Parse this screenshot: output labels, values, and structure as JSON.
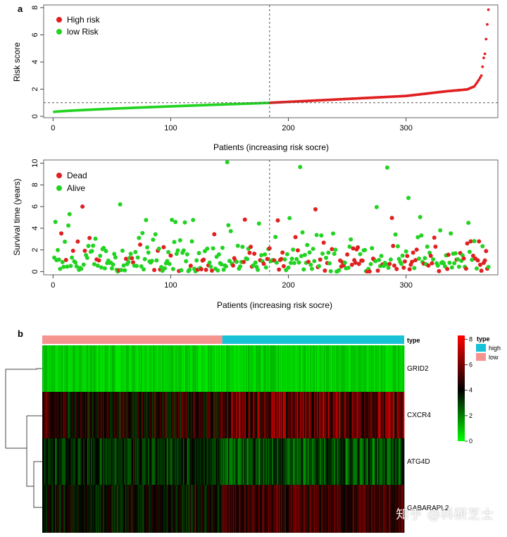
{
  "colors": {
    "high": "#e02020",
    "low": "#22d322",
    "type_high": "#17c2d6",
    "type_low": "#f5938f"
  },
  "chart_data": [
    {
      "panel_label": "a",
      "type": "scatter",
      "ylabel": "Risk score",
      "xlabel": "Patients (increasing risk socre)",
      "xticks": [
        0,
        100,
        200,
        300
      ],
      "yticks": [
        0,
        2,
        4,
        6,
        8
      ],
      "xlim": [
        -8,
        378
      ],
      "ylim": [
        -0.1,
        8.2
      ],
      "cutoff_index": 184,
      "cutoff_score": 1.0,
      "n_patients": 370,
      "legend": [
        "High risk",
        "low Risk"
      ],
      "series": [
        {
          "name": "low Risk",
          "x_range": [
            1,
            184
          ],
          "risk_start": 0.33,
          "risk_end": 0.99
        },
        {
          "name": "High risk",
          "x_range": [
            185,
            370
          ],
          "risk_anchors": [
            [
              185,
              1.0
            ],
            [
              250,
              1.28
            ],
            [
              300,
              1.5
            ],
            [
              335,
              1.85
            ],
            [
              352,
              1.98
            ],
            [
              358,
              2.2
            ],
            [
              362,
              2.7
            ],
            [
              364,
              3.0
            ],
            [
              366,
              4.3
            ],
            [
              367,
              4.6
            ],
            [
              370,
              7.85
            ]
          ]
        }
      ]
    },
    {
      "panel_label": "",
      "type": "scatter",
      "ylabel": "Survival time (years)",
      "xlabel": "Patients (increasing risk socre)",
      "xticks": [
        0,
        100,
        200,
        300
      ],
      "yticks": [
        0,
        2,
        4,
        6,
        8,
        10
      ],
      "xlim": [
        -8,
        378
      ],
      "ylim": [
        -0.3,
        10.3
      ],
      "cutoff_index": 184,
      "legend": [
        "Dead",
        "Alive"
      ],
      "notable_points": [
        {
          "x": 148,
          "y": 10.1,
          "status": "Alive"
        },
        {
          "x": 210,
          "y": 9.65,
          "status": "Alive"
        },
        {
          "x": 284,
          "y": 9.6,
          "status": "Alive"
        },
        {
          "x": 25,
          "y": 6.0,
          "status": "Dead"
        },
        {
          "x": 57,
          "y": 6.2,
          "status": "Alive"
        },
        {
          "x": 223,
          "y": 5.75,
          "status": "Dead"
        },
        {
          "x": 275,
          "y": 5.95,
          "status": "Alive"
        },
        {
          "x": 288,
          "y": 4.95,
          "status": "Dead"
        },
        {
          "x": 302,
          "y": 6.8,
          "status": "Alive"
        },
        {
          "x": 14,
          "y": 5.3,
          "status": "Alive"
        },
        {
          "x": 163,
          "y": 4.8,
          "status": "Dead"
        },
        {
          "x": 353,
          "y": 4.5,
          "status": "Alive"
        }
      ]
    },
    {
      "panel_label": "b",
      "type": "heatmap",
      "genes": [
        "GRID2",
        "CXCR4",
        "ATG4D",
        "GABARAPL2"
      ],
      "annotation_title": "type",
      "annotation_groups": [
        "high",
        "low"
      ],
      "annotation_row_label": "type",
      "colorbar_ticks": [
        0,
        2,
        4,
        6,
        8
      ],
      "colorbar_range": [
        0,
        8.3
      ],
      "n_low": 184,
      "n_high": 186
    }
  ],
  "watermark": "知乎 @科研芝士"
}
